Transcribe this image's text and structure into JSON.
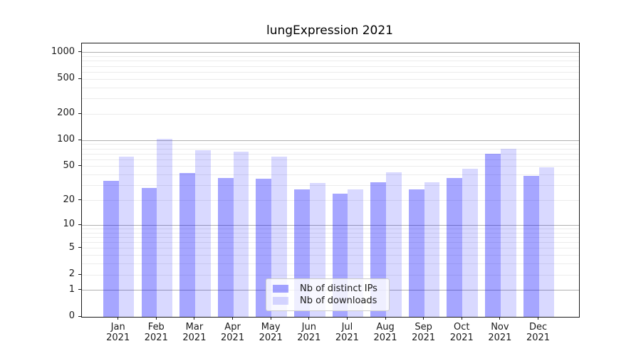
{
  "figure": {
    "title": "lungExpression 2021"
  },
  "chart_data": {
    "type": "bar",
    "title": "lungExpression 2021",
    "categories": [
      "Jan",
      "Feb",
      "Mar",
      "Apr",
      "May",
      "Jun",
      "Jul",
      "Aug",
      "Sep",
      "Oct",
      "Nov",
      "Dec"
    ],
    "year_label": "2021",
    "series": [
      {
        "name": "Nb of distinct IPs",
        "key": "ips",
        "color": "#a6a6ff",
        "css_color": "rgba(0,0,255,0.35)",
        "values": [
          34,
          28,
          42,
          37,
          36,
          27,
          24,
          33,
          27,
          37,
          70,
          39
        ]
      },
      {
        "name": "Nb of downloads",
        "key": "downloads",
        "color": "#d9d9ff",
        "css_color": "rgba(0,0,255,0.15)",
        "values": [
          65,
          105,
          77,
          74,
          65,
          32,
          27,
          43,
          33,
          47,
          80,
          49
        ]
      }
    ],
    "yscale": "log1p",
    "y_ticks": [
      0,
      1,
      2,
      5,
      10,
      20,
      50,
      100,
      200,
      500,
      1000
    ],
    "ylim": [
      0,
      1281
    ],
    "xlabel": "",
    "ylabel": "",
    "grid": true,
    "legend_position": "lower center",
    "gridline_major_color": "#b0b0b0",
    "gridline_minor_color": "#ececec"
  }
}
